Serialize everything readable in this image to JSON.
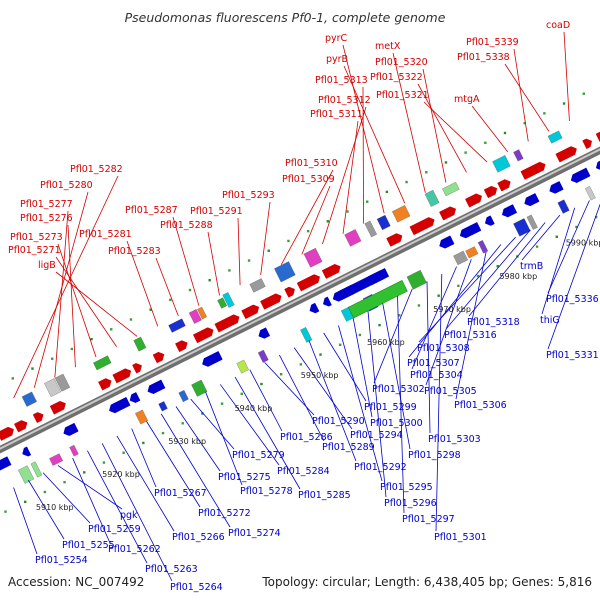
{
  "title": "Pseudomonas fluorescens Pf0-1, complete genome",
  "footer": {
    "accession": "Accession: NC_007492",
    "topology": "Topology: circular; Length: 6,438,405 bp; Genes: 5,816"
  },
  "colors": {
    "forward": "#d40000",
    "reverse": "#0000cc",
    "backbone": "#9a9a9a",
    "tick": "#2a8a2a"
  },
  "scale_labels": [
    "5910 kbp",
    "5920 kbp",
    "5930 kbp",
    "5940 kbp",
    "5950 kbp",
    "5960 kbp",
    "5970 kbp",
    "5980 kbp",
    "5990 kbp"
  ],
  "forward_labels": [
    "Pfl01_5282",
    "Pfl01_5280",
    "Pfl01_5277",
    "Pfl01_5276",
    "Pfl01_5273",
    "Pfl01_5271",
    "ligB",
    "Pfl01_5281",
    "Pfl01_5283",
    "Pfl01_5287",
    "Pfl01_5288",
    "Pfl01_5291",
    "Pfl01_5293",
    "Pfl01_5310",
    "Pfl01_5309",
    "Pfl01_5312",
    "Pfl01_5311",
    "Pfl01_5313",
    "pyrC",
    "pyrB",
    "metX",
    "Pfl01_5320",
    "Pfl01_5322",
    "Pfl01_5321",
    "mtgA",
    "Pfl01_5339",
    "Pfl01_5338",
    "coaD"
  ],
  "reverse_labels": [
    "Pfl01_5254",
    "Pfl01_5255",
    "Pfl01_5259",
    "pgk",
    "Pfl01_5262",
    "Pfl01_5263",
    "Pfl01_5264",
    "Pfl01_5266",
    "Pfl01_5267",
    "Pfl01_5272",
    "Pfl01_5274",
    "Pfl01_5275",
    "Pfl01_5279",
    "Pfl01_5278",
    "Pfl01_5284",
    "Pfl01_5285",
    "Pfl01_5286",
    "Pfl01_5290",
    "Pfl01_5289",
    "Pfl01_5294",
    "Pfl01_5292",
    "Pfl01_5299",
    "Pfl01_5295",
    "Pfl01_5300",
    "Pfl01_5296",
    "Pfl01_5298",
    "Pfl01_5297",
    "Pfl01_5302",
    "Pfl01_5303",
    "Pfl01_5301",
    "Pfl01_5304",
    "Pfl01_5305",
    "Pfl01_5306",
    "Pfl01_5307",
    "Pfl01_5308",
    "Pfl01_5316",
    "Pfl01_5318",
    "trmB",
    "thiG",
    "Pfl01_5336",
    "Pfl01_5331"
  ]
}
